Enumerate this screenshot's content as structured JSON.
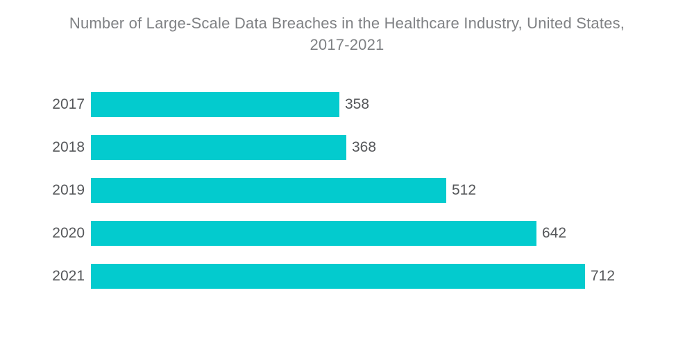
{
  "title": {
    "line1": "Number of Large-Scale Data Breaches in the Healthcare Industry, United States,",
    "line2": "2017-2021"
  },
  "colors": {
    "bar": "#03CBCE",
    "title_text": "#7F8184",
    "label_text": "#55575A",
    "background": "#FFFFFF"
  },
  "chart_data": {
    "type": "bar",
    "orientation": "horizontal",
    "title": "Number of Large-Scale Data Breaches in the Healthcare Industry, United States, 2017-2021",
    "categories": [
      "2017",
      "2018",
      "2019",
      "2020",
      "2021"
    ],
    "values": [
      358,
      368,
      512,
      642,
      712
    ],
    "xlabel": "",
    "ylabel": "",
    "xlim": [
      0,
      712
    ],
    "grid": false,
    "legend": "none",
    "value_labels": "outside-end-of-bar"
  }
}
